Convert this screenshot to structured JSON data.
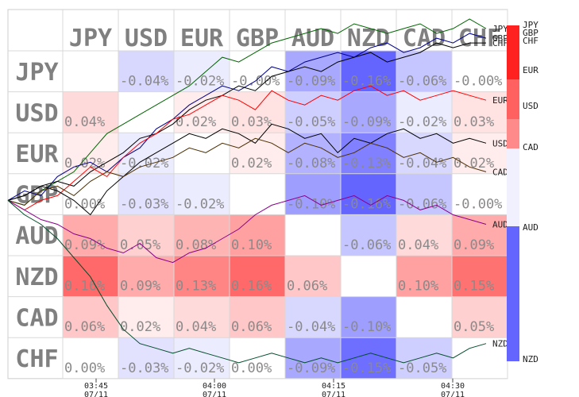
{
  "chart_data": {
    "type": "heatmap",
    "currencies": [
      "JPY",
      "USD",
      "EUR",
      "GBP",
      "AUD",
      "NZD",
      "CAD",
      "CHF"
    ],
    "matrix": [
      [
        null,
        -0.04,
        -0.02,
        -0.0,
        -0.09,
        -0.16,
        -0.06,
        -0.0
      ],
      [
        0.04,
        null,
        0.02,
        0.03,
        -0.05,
        -0.09,
        -0.02,
        0.03
      ],
      [
        0.02,
        -0.02,
        null,
        0.02,
        -0.08,
        -0.13,
        -0.04,
        0.02
      ],
      [
        0.0,
        -0.03,
        -0.02,
        null,
        -0.1,
        -0.16,
        -0.06,
        -0.0
      ],
      [
        0.09,
        0.05,
        0.08,
        0.1,
        null,
        -0.06,
        0.04,
        0.09
      ],
      [
        0.16,
        0.09,
        0.13,
        0.16,
        0.06,
        null,
        0.1,
        0.15
      ],
      [
        0.06,
        0.02,
        0.04,
        0.06,
        -0.04,
        -0.1,
        null,
        0.05
      ],
      [
        0.0,
        -0.03,
        -0.02,
        0.0,
        -0.09,
        -0.15,
        -0.05,
        null
      ]
    ],
    "value_suffix": "%",
    "x_ticks": [
      {
        "time": "03:45",
        "date": "07/11"
      },
      {
        "time": "04:00",
        "date": "07/11"
      },
      {
        "time": "04:15",
        "date": "07/11"
      },
      {
        "time": "04:30",
        "date": "07/11"
      }
    ],
    "legend": {
      "top_labels": [
        "JPY",
        "GBP",
        "CHF"
      ],
      "positive": [
        {
          "label": "EUR",
          "color": "#ff2a2a"
        },
        {
          "label": "USD",
          "color": "#ff6060"
        },
        {
          "label": "CAD",
          "color": "#ff9a9a"
        }
      ],
      "negative": [
        {
          "label": "AUD",
          "color": "#6464ff"
        },
        {
          "label": "NZD",
          "color": "#6464ff"
        }
      ]
    },
    "line_series": [
      {
        "name": "JPY",
        "color": "#006400",
        "end_label": "JPY",
        "values": [
          0,
          -0.01,
          0.02,
          0.04,
          0.06,
          0.1,
          0.14,
          0.16,
          0.18,
          0.2,
          0.22,
          0.24,
          0.27,
          0.3,
          0.29,
          0.31,
          0.33,
          0.34,
          0.35,
          0.36,
          0.35,
          0.37,
          0.36,
          0.35,
          0.36,
          0.37,
          0.35,
          0.36,
          0.38,
          0.36
        ]
      },
      {
        "name": "GBP",
        "color": "#00008b",
        "end_label": "GBP",
        "values": [
          0,
          0.02,
          0.01,
          0.05,
          0.07,
          0.08,
          0.06,
          0.09,
          0.11,
          0.15,
          0.17,
          0.2,
          0.22,
          0.24,
          0.23,
          0.25,
          0.28,
          0.27,
          0.29,
          0.3,
          0.31,
          0.3,
          0.32,
          0.33,
          0.31,
          0.32,
          0.34,
          0.33,
          0.35,
          0.34
        ]
      },
      {
        "name": "CHF",
        "color": "#000000",
        "end_label": "CHF",
        "values": [
          0,
          0.01,
          0.03,
          0.04,
          0.03,
          0.06,
          0.08,
          0.1,
          0.13,
          0.14,
          0.16,
          0.19,
          0.21,
          0.22,
          0.24,
          0.23,
          0.26,
          0.27,
          0.28,
          0.27,
          0.29,
          0.3,
          0.31,
          0.29,
          0.3,
          0.31,
          0.33,
          0.32,
          0.33,
          0.33
        ]
      },
      {
        "name": "EUR",
        "color": "#ff0000",
        "end_label": "EUR",
        "values": [
          0,
          -0.02,
          0.0,
          0.01,
          0.04,
          0.07,
          0.05,
          0.09,
          0.12,
          0.14,
          0.17,
          0.18,
          0.2,
          0.22,
          0.21,
          0.19,
          0.23,
          0.21,
          0.2,
          0.22,
          0.21,
          0.23,
          0.24,
          0.22,
          0.23,
          0.21,
          0.22,
          0.23,
          0.22,
          0.21
        ]
      },
      {
        "name": "USD",
        "color": "#000000",
        "end_label": "USD",
        "values": [
          0,
          0.01,
          0.03,
          0.02,
          0.0,
          -0.03,
          0.02,
          0.05,
          0.08,
          0.1,
          0.12,
          0.14,
          0.13,
          0.15,
          0.14,
          0.12,
          0.16,
          0.15,
          0.13,
          0.14,
          0.1,
          0.13,
          0.12,
          0.14,
          0.15,
          0.13,
          0.14,
          0.12,
          0.13,
          0.12
        ]
      },
      {
        "name": "CAD",
        "color": "#4b2e00",
        "end_label": "CAD",
        "values": [
          0,
          -0.01,
          0.02,
          0.03,
          0.01,
          0.04,
          0.06,
          0.05,
          0.07,
          0.08,
          0.09,
          0.11,
          0.1,
          0.12,
          0.11,
          0.13,
          0.12,
          0.1,
          0.12,
          0.11,
          0.09,
          0.1,
          0.12,
          0.11,
          0.09,
          0.1,
          0.08,
          0.09,
          0.07,
          0.06
        ]
      },
      {
        "name": "AUD",
        "color": "#8b008b",
        "end_label": "AUD",
        "values": [
          0,
          -0.02,
          -0.04,
          -0.05,
          -0.07,
          -0.08,
          -0.1,
          -0.11,
          -0.09,
          -0.12,
          -0.13,
          -0.11,
          -0.1,
          -0.08,
          -0.06,
          -0.03,
          -0.01,
          0.0,
          0.01,
          -0.01,
          0.0,
          0.01,
          -0.01,
          0.01,
          0.0,
          -0.02,
          -0.01,
          -0.03,
          -0.04,
          -0.05
        ]
      },
      {
        "name": "NZD",
        "color": "#004d2a",
        "end_label": "NZD",
        "values": [
          0,
          -0.03,
          -0.05,
          -0.08,
          -0.12,
          -0.16,
          -0.22,
          -0.27,
          -0.3,
          -0.31,
          -0.32,
          -0.31,
          -0.32,
          -0.33,
          -0.34,
          -0.33,
          -0.32,
          -0.33,
          -0.34,
          -0.33,
          -0.34,
          -0.33,
          -0.32,
          -0.33,
          -0.34,
          -0.33,
          -0.32,
          -0.33,
          -0.31,
          -0.3
        ]
      }
    ],
    "line_ylim": [
      -0.36,
      0.4
    ]
  }
}
